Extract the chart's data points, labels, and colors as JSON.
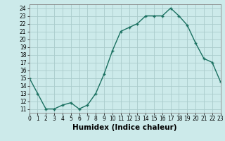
{
  "xlabel": "Humidex (Indice chaleur)",
  "x": [
    0,
    1,
    2,
    3,
    4,
    5,
    6,
    7,
    8,
    9,
    10,
    11,
    12,
    13,
    14,
    15,
    16,
    17,
    18,
    19,
    20,
    21,
    22,
    23
  ],
  "y": [
    15,
    13,
    11,
    11,
    11.5,
    11.8,
    11,
    11.5,
    13,
    15.5,
    18.5,
    21,
    21.5,
    22,
    23,
    23,
    23,
    24,
    23,
    21.8,
    19.5,
    17.5,
    17,
    14.5
  ],
  "line_color": "#1a7060",
  "bg_color": "#cceaea",
  "grid_color": "#aacccc",
  "xlim": [
    0,
    23
  ],
  "ylim": [
    10.5,
    24.5
  ],
  "yticks": [
    11,
    12,
    13,
    14,
    15,
    16,
    17,
    18,
    19,
    20,
    21,
    22,
    23,
    24
  ],
  "xticks": [
    0,
    1,
    2,
    3,
    4,
    5,
    6,
    7,
    8,
    9,
    10,
    11,
    12,
    13,
    14,
    15,
    16,
    17,
    18,
    19,
    20,
    21,
    22,
    23
  ],
  "tick_fontsize": 5.5,
  "xlabel_fontsize": 7.5
}
